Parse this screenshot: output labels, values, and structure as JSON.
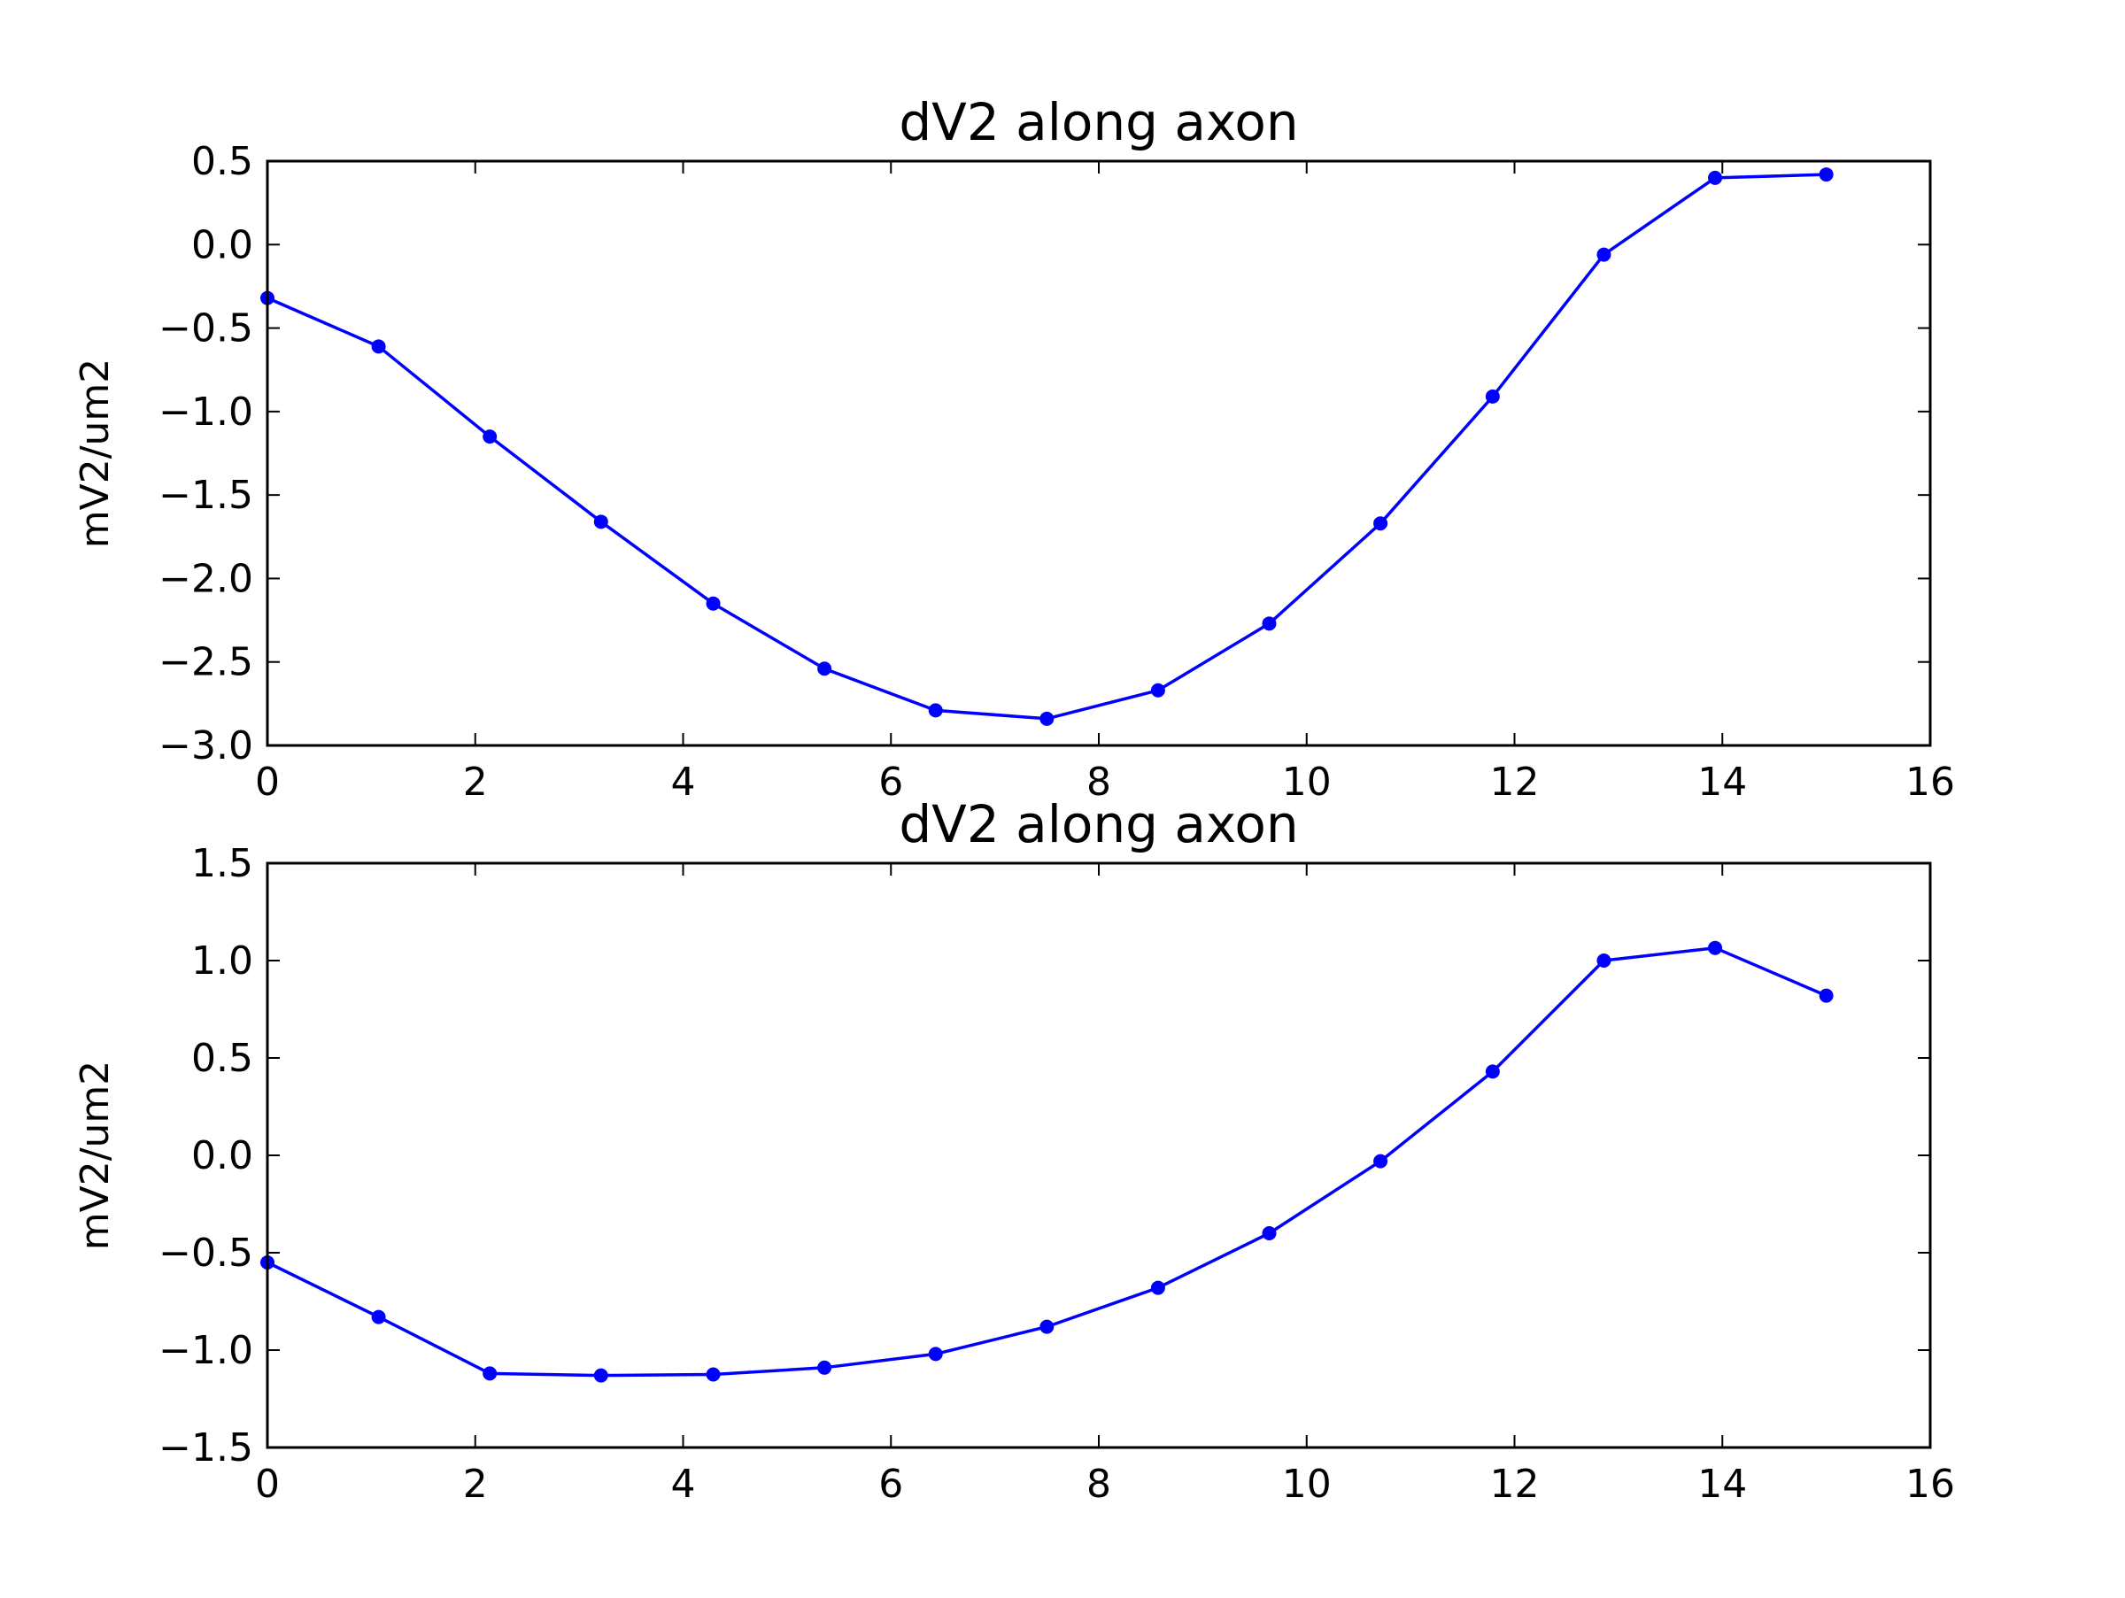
{
  "chart_data": [
    {
      "type": "line",
      "title": "dV2 along axon",
      "xlabel": "",
      "ylabel": "mV2/um2",
      "xlim": [
        0,
        16
      ],
      "ylim": [
        -3.0,
        0.5
      ],
      "grid": false,
      "xticks": [
        "0",
        "2",
        "4",
        "6",
        "8",
        "10",
        "12",
        "14",
        "16"
      ],
      "yticks": [
        "0.5",
        "0.0",
        "−0.5",
        "−1.0",
        "−1.5",
        "−2.0",
        "−2.5",
        "−3.0"
      ],
      "series": [
        {
          "color": "#0000ff",
          "marker": "circle",
          "x": [
            0,
            1.07,
            2.14,
            3.21,
            4.29,
            5.36,
            6.43,
            7.5,
            8.57,
            9.64,
            10.71,
            11.79,
            12.86,
            13.93,
            15.0
          ],
          "y": [
            -0.32,
            -0.61,
            -1.15,
            -1.66,
            -2.15,
            -2.54,
            -2.79,
            -2.84,
            -2.67,
            -2.27,
            -1.67,
            -0.91,
            -0.06,
            0.4,
            0.42
          ]
        }
      ]
    },
    {
      "type": "line",
      "title": "dV2 along axon",
      "xlabel": "",
      "ylabel": "mV2/um2",
      "xlim": [
        0,
        16
      ],
      "ylim": [
        -1.5,
        1.5
      ],
      "grid": false,
      "xticks": [
        "0",
        "2",
        "4",
        "6",
        "8",
        "10",
        "12",
        "14",
        "16"
      ],
      "yticks": [
        "1.5",
        "1.0",
        "0.5",
        "0.0",
        "−0.5",
        "−1.0",
        "−1.5"
      ],
      "series": [
        {
          "color": "#0000ff",
          "marker": "circle",
          "x": [
            0,
            1.07,
            2.14,
            3.21,
            4.29,
            5.36,
            6.43,
            7.5,
            8.57,
            9.64,
            10.71,
            11.79,
            12.86,
            13.93,
            15.0
          ],
          "y": [
            -0.55,
            -0.83,
            -1.12,
            -1.13,
            -1.125,
            -1.09,
            -1.02,
            -0.88,
            -0.68,
            -0.4,
            -0.03,
            0.43,
            1.0,
            1.065,
            0.82
          ]
        }
      ]
    }
  ]
}
